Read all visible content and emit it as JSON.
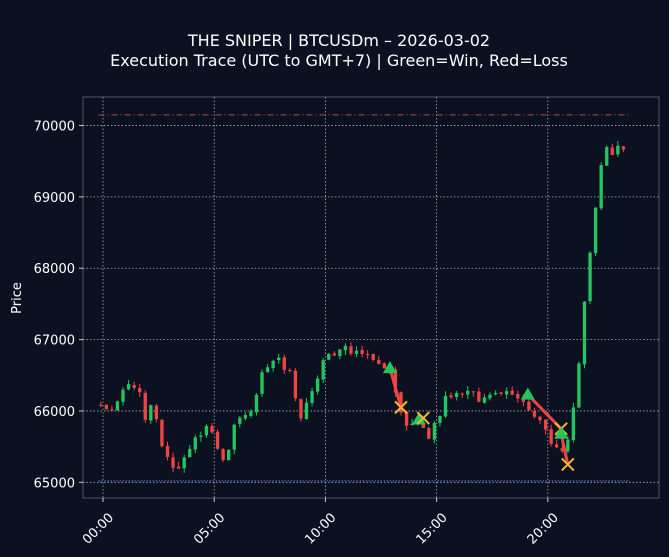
{
  "chart_data": {
    "type": "candlestick",
    "title_line1": "THE SNIPER | BTCUSDm – 2026-03-02",
    "title_line2": "Execution Trace (UTC to GMT+7) | Green=Win, Red=Loss",
    "xlabel": "",
    "ylabel": "Price",
    "x_unit": "hours",
    "xlim": [
      -0.9,
      25.0
    ],
    "ylim": [
      64780,
      70400
    ],
    "x_ticks": [
      {
        "value": 0,
        "label": "00:00"
      },
      {
        "value": 5,
        "label": "05:00"
      },
      {
        "value": 10,
        "label": "10:00"
      },
      {
        "value": 15,
        "label": "15:00"
      },
      {
        "value": 20,
        "label": "20:00"
      }
    ],
    "y_ticks": [
      {
        "value": 65000,
        "label": "65000"
      },
      {
        "value": 66000,
        "label": "66000"
      },
      {
        "value": 67000,
        "label": "67000"
      },
      {
        "value": 68000,
        "label": "68000"
      },
      {
        "value": 69000,
        "label": "69000"
      },
      {
        "value": 70000,
        "label": "70000"
      }
    ],
    "grid": true,
    "colors": {
      "background": "#0b1120",
      "up": "#22c55e",
      "down": "#ef4444",
      "grid": "#c8c8d2",
      "spine": "#4b5563",
      "high_line": "#e05555",
      "low_line": "#5b8def",
      "entry": "#22c55e",
      "exit": "#f5b82e",
      "trade_loss": "#ef4444"
    },
    "reference_lines": {
      "high": 70150,
      "low": 65020,
      "x_start": -0.2,
      "x_end": 23.7
    },
    "candle_width_hours": 0.15,
    "keypoints": [
      [
        -0.1,
        66100
      ],
      [
        0.4,
        66050
      ],
      [
        0.8,
        65980
      ],
      [
        1.0,
        66380
      ],
      [
        1.3,
        66320
      ],
      [
        1.6,
        66400
      ],
      [
        1.9,
        66250
      ],
      [
        2.1,
        65900
      ],
      [
        2.4,
        66050
      ],
      [
        2.7,
        65850
      ],
      [
        3.0,
        65400
      ],
      [
        3.4,
        65150
      ],
      [
        3.7,
        65250
      ],
      [
        4.2,
        65550
      ],
      [
        4.7,
        65700
      ],
      [
        5.0,
        65850
      ],
      [
        5.3,
        65600
      ],
      [
        5.6,
        65250
      ],
      [
        5.9,
        65500
      ],
      [
        6.2,
        65850
      ],
      [
        6.6,
        65900
      ],
      [
        7.0,
        66000
      ],
      [
        7.4,
        66500
      ],
      [
        7.8,
        66600
      ],
      [
        8.0,
        66900
      ],
      [
        8.3,
        66550
      ],
      [
        8.6,
        66650
      ],
      [
        8.8,
        66300
      ],
      [
        9.1,
        65900
      ],
      [
        9.4,
        66100
      ],
      [
        9.7,
        66300
      ],
      [
        10.0,
        66500
      ],
      [
        10.3,
        66850
      ],
      [
        10.7,
        66800
      ],
      [
        11.1,
        66900
      ],
      [
        11.5,
        66800
      ],
      [
        12.0,
        66800
      ],
      [
        12.4,
        66700
      ],
      [
        12.7,
        66650
      ],
      [
        13.1,
        66600
      ],
      [
        13.3,
        66300
      ],
      [
        13.6,
        66050
      ],
      [
        13.9,
        65800
      ],
      [
        14.3,
        65900
      ],
      [
        14.6,
        65800
      ],
      [
        14.9,
        65600
      ],
      [
        15.3,
        65900
      ],
      [
        15.6,
        66150
      ],
      [
        16.0,
        66250
      ],
      [
        16.4,
        66200
      ],
      [
        16.8,
        66250
      ],
      [
        17.2,
        66100
      ],
      [
        17.6,
        66200
      ],
      [
        18.0,
        66200
      ],
      [
        18.5,
        66250
      ],
      [
        19.0,
        66200
      ],
      [
        19.3,
        66050
      ],
      [
        19.6,
        65900
      ],
      [
        19.9,
        65850
      ],
      [
        20.2,
        65700
      ],
      [
        20.5,
        65500
      ],
      [
        20.8,
        65450
      ],
      [
        21.1,
        65550
      ],
      [
        21.4,
        66100
      ],
      [
        21.7,
        66750
      ],
      [
        22.0,
        67900
      ],
      [
        22.3,
        68600
      ],
      [
        22.6,
        69400
      ],
      [
        22.9,
        69700
      ],
      [
        23.2,
        69600
      ],
      [
        23.5,
        69700
      ]
    ],
    "trades": [
      {
        "entry": [
          12.9,
          66600
        ],
        "exit": [
          13.4,
          66050
        ]
      },
      {
        "entry": [
          14.2,
          65880
        ],
        "exit": [
          14.4,
          65900
        ]
      },
      {
        "entry": [
          19.1,
          66230
        ],
        "exit": [
          20.6,
          65750
        ]
      },
      {
        "entry": [
          20.6,
          65680
        ],
        "exit": [
          20.9,
          65250
        ]
      }
    ]
  }
}
